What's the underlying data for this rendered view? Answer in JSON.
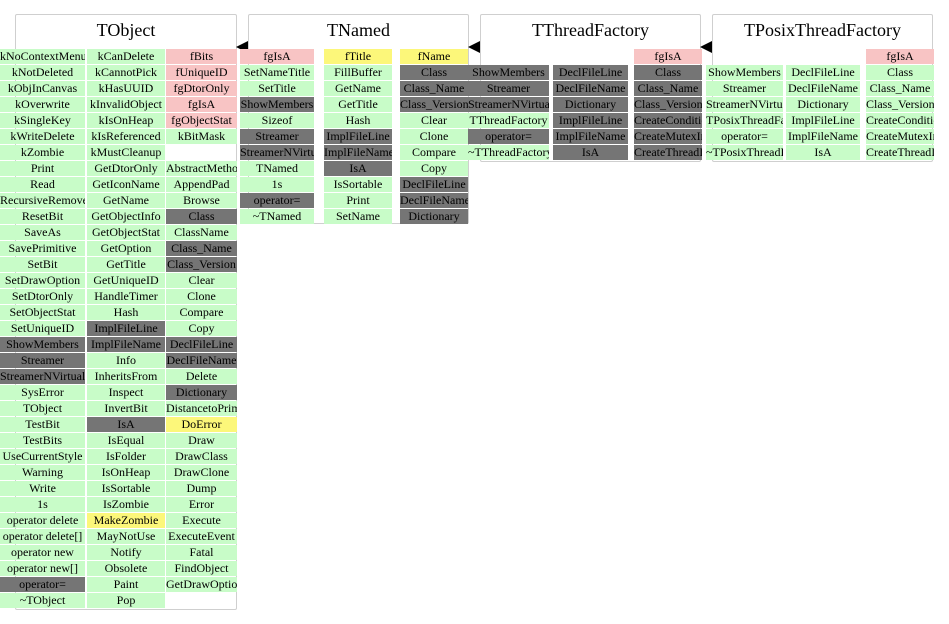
{
  "colors": {
    "public": "#c8fcc8",
    "private": "#757575",
    "protected": "#f8c4c4",
    "special": "#fcf77a"
  },
  "classes": [
    {
      "name": "TObject",
      "columns": [
        [
          {
            "t": "kNoContextMenu",
            "k": "public"
          },
          {
            "t": "kNotDeleted",
            "k": "public"
          },
          {
            "t": "kObjInCanvas",
            "k": "public"
          },
          {
            "t": "kOverwrite",
            "k": "public"
          },
          {
            "t": "kSingleKey",
            "k": "public"
          },
          {
            "t": "kWriteDelete",
            "k": "public"
          },
          {
            "t": "kZombie",
            "k": "public"
          },
          {
            "t": "Print",
            "k": "public"
          },
          {
            "t": "Read",
            "k": "public"
          },
          {
            "t": "RecursiveRemove",
            "k": "public"
          },
          {
            "t": "ResetBit",
            "k": "public"
          },
          {
            "t": "SaveAs",
            "k": "public"
          },
          {
            "t": "SavePrimitive",
            "k": "public"
          },
          {
            "t": "SetBit",
            "k": "public"
          },
          {
            "t": "SetDrawOption",
            "k": "public"
          },
          {
            "t": "SetDtorOnly",
            "k": "public"
          },
          {
            "t": "SetObjectStat",
            "k": "public"
          },
          {
            "t": "SetUniqueID",
            "k": "public"
          },
          {
            "t": "ShowMembers",
            "k": "private"
          },
          {
            "t": "Streamer",
            "k": "private"
          },
          {
            "t": "StreamerNVirtual",
            "k": "private"
          },
          {
            "t": "SysError",
            "k": "public"
          },
          {
            "t": "TObject",
            "k": "public"
          },
          {
            "t": "TestBit",
            "k": "public"
          },
          {
            "t": "TestBits",
            "k": "public"
          },
          {
            "t": "UseCurrentStyle",
            "k": "public"
          },
          {
            "t": "Warning",
            "k": "public"
          },
          {
            "t": "Write",
            "k": "public"
          },
          {
            "t": "1s",
            "k": "public"
          },
          {
            "t": "operator delete",
            "k": "public"
          },
          {
            "t": "operator delete[]",
            "k": "public"
          },
          {
            "t": "operator new",
            "k": "public"
          },
          {
            "t": "operator new[]",
            "k": "public"
          },
          {
            "t": "operator=",
            "k": "private"
          },
          {
            "t": "~TObject",
            "k": "public"
          }
        ],
        [
          {
            "t": "kCanDelete",
            "k": "public"
          },
          {
            "t": "kCannotPick",
            "k": "public"
          },
          {
            "t": "kHasUUID",
            "k": "public"
          },
          {
            "t": "kInvalidObject",
            "k": "public"
          },
          {
            "t": "kIsOnHeap",
            "k": "public"
          },
          {
            "t": "kIsReferenced",
            "k": "public"
          },
          {
            "t": "kMustCleanup",
            "k": "public"
          },
          {
            "t": "GetDtorOnly",
            "k": "public"
          },
          {
            "t": "GetIconName",
            "k": "public"
          },
          {
            "t": "GetName",
            "k": "public"
          },
          {
            "t": "GetObjectInfo",
            "k": "public"
          },
          {
            "t": "GetObjectStat",
            "k": "public"
          },
          {
            "t": "GetOption",
            "k": "public"
          },
          {
            "t": "GetTitle",
            "k": "public"
          },
          {
            "t": "GetUniqueID",
            "k": "public"
          },
          {
            "t": "HandleTimer",
            "k": "public"
          },
          {
            "t": "Hash",
            "k": "public"
          },
          {
            "t": "ImplFileLine",
            "k": "private"
          },
          {
            "t": "ImplFileName",
            "k": "private"
          },
          {
            "t": "Info",
            "k": "public"
          },
          {
            "t": "InheritsFrom",
            "k": "public"
          },
          {
            "t": "Inspect",
            "k": "public"
          },
          {
            "t": "InvertBit",
            "k": "public"
          },
          {
            "t": "IsA",
            "k": "private"
          },
          {
            "t": "IsEqual",
            "k": "public"
          },
          {
            "t": "IsFolder",
            "k": "public"
          },
          {
            "t": "IsOnHeap",
            "k": "public"
          },
          {
            "t": "IsSortable",
            "k": "public"
          },
          {
            "t": "IsZombie",
            "k": "public"
          },
          {
            "t": "MakeZombie",
            "k": "special"
          },
          {
            "t": "MayNotUse",
            "k": "public"
          },
          {
            "t": "Notify",
            "k": "public"
          },
          {
            "t": "Obsolete",
            "k": "public"
          },
          {
            "t": "Paint",
            "k": "public"
          },
          {
            "t": "Pop",
            "k": "public"
          }
        ],
        [
          {
            "t": "fBits",
            "k": "prot"
          },
          {
            "t": "fUniqueID",
            "k": "prot"
          },
          {
            "t": "fgDtorOnly",
            "k": "prot"
          },
          {
            "t": "fgIsA",
            "k": "prot"
          },
          {
            "t": "fgObjectStat",
            "k": "prot"
          },
          {
            "t": "kBitMask",
            "k": "public"
          },
          {
            "t": "",
            "k": "blank"
          },
          {
            "t": "AbstractMethod",
            "k": "public"
          },
          {
            "t": "AppendPad",
            "k": "public"
          },
          {
            "t": "Browse",
            "k": "public"
          },
          {
            "t": "Class",
            "k": "private"
          },
          {
            "t": "ClassName",
            "k": "public"
          },
          {
            "t": "Class_Name",
            "k": "private"
          },
          {
            "t": "Class_Version",
            "k": "private"
          },
          {
            "t": "Clear",
            "k": "public"
          },
          {
            "t": "Clone",
            "k": "public"
          },
          {
            "t": "Compare",
            "k": "public"
          },
          {
            "t": "Copy",
            "k": "public"
          },
          {
            "t": "DeclFileLine",
            "k": "private"
          },
          {
            "t": "DeclFileName",
            "k": "private"
          },
          {
            "t": "Delete",
            "k": "public"
          },
          {
            "t": "Dictionary",
            "k": "private"
          },
          {
            "t": "DistancetoPrimitive",
            "k": "public"
          },
          {
            "t": "DoError",
            "k": "special"
          },
          {
            "t": "Draw",
            "k": "public"
          },
          {
            "t": "DrawClass",
            "k": "public"
          },
          {
            "t": "DrawClone",
            "k": "public"
          },
          {
            "t": "Dump",
            "k": "public"
          },
          {
            "t": "Error",
            "k": "public"
          },
          {
            "t": "Execute",
            "k": "public"
          },
          {
            "t": "ExecuteEvent",
            "k": "public"
          },
          {
            "t": "Fatal",
            "k": "public"
          },
          {
            "t": "FindObject",
            "k": "public"
          },
          {
            "t": "GetDrawOption",
            "k": "public"
          }
        ]
      ]
    },
    {
      "name": "TNamed",
      "columns": [
        [
          {
            "t": "fgIsA",
            "k": "prot"
          },
          {
            "t": "SetNameTitle",
            "k": "public"
          },
          {
            "t": "SetTitle",
            "k": "public"
          },
          {
            "t": "ShowMembers",
            "k": "private"
          },
          {
            "t": "Sizeof",
            "k": "public"
          },
          {
            "t": "Streamer",
            "k": "private"
          },
          {
            "t": "StreamerNVirtual",
            "k": "private"
          },
          {
            "t": "TNamed",
            "k": "public"
          },
          {
            "t": "1s",
            "k": "public"
          },
          {
            "t": "operator=",
            "k": "private"
          },
          {
            "t": "~TNamed",
            "k": "public"
          }
        ],
        [
          {
            "t": "fTitle",
            "k": "special"
          },
          {
            "t": "FillBuffer",
            "k": "public"
          },
          {
            "t": "GetName",
            "k": "public"
          },
          {
            "t": "GetTitle",
            "k": "public"
          },
          {
            "t": "Hash",
            "k": "public"
          },
          {
            "t": "ImplFileLine",
            "k": "private"
          },
          {
            "t": "ImplFileName",
            "k": "private"
          },
          {
            "t": "IsA",
            "k": "private"
          },
          {
            "t": "IsSortable",
            "k": "public"
          },
          {
            "t": "Print",
            "k": "public"
          },
          {
            "t": "SetName",
            "k": "public"
          }
        ],
        [
          {
            "t": "fName",
            "k": "special"
          },
          {
            "t": "Class",
            "k": "private"
          },
          {
            "t": "Class_Name",
            "k": "private"
          },
          {
            "t": "Class_Version",
            "k": "private"
          },
          {
            "t": "Clear",
            "k": "public"
          },
          {
            "t": "Clone",
            "k": "public"
          },
          {
            "t": "Compare",
            "k": "public"
          },
          {
            "t": "Copy",
            "k": "public"
          },
          {
            "t": "DeclFileLine",
            "k": "private"
          },
          {
            "t": "DeclFileName",
            "k": "private"
          },
          {
            "t": "Dictionary",
            "k": "private"
          }
        ]
      ]
    },
    {
      "name": "TThreadFactory",
      "columns": [
        [
          {
            "t": "",
            "k": "blank"
          },
          {
            "t": "ShowMembers",
            "k": "private"
          },
          {
            "t": "Streamer",
            "k": "private"
          },
          {
            "t": "StreamerNVirtual",
            "k": "private"
          },
          {
            "t": "TThreadFactory",
            "k": "public"
          },
          {
            "t": "operator=",
            "k": "private"
          },
          {
            "t": "~TThreadFactory",
            "k": "public"
          }
        ],
        [
          {
            "t": "",
            "k": "blank"
          },
          {
            "t": "DeclFileLine",
            "k": "private"
          },
          {
            "t": "DeclFileName",
            "k": "private"
          },
          {
            "t": "Dictionary",
            "k": "private"
          },
          {
            "t": "ImplFileLine",
            "k": "private"
          },
          {
            "t": "ImplFileName",
            "k": "private"
          },
          {
            "t": "IsA",
            "k": "private"
          }
        ],
        [
          {
            "t": "fgIsA",
            "k": "prot"
          },
          {
            "t": "Class",
            "k": "private"
          },
          {
            "t": "Class_Name",
            "k": "private"
          },
          {
            "t": "Class_Version",
            "k": "private"
          },
          {
            "t": "CreateCondition",
            "k": "private"
          },
          {
            "t": "CreateMutexImp",
            "k": "private"
          },
          {
            "t": "CreateThreadImp",
            "k": "private"
          }
        ]
      ]
    },
    {
      "name": "TPosixThreadFactory",
      "columns": [
        [
          {
            "t": "",
            "k": "blank"
          },
          {
            "t": "ShowMembers",
            "k": "public"
          },
          {
            "t": "Streamer",
            "k": "public"
          },
          {
            "t": "StreamerNVirtual",
            "k": "public"
          },
          {
            "t": "TPosixThreadFactory",
            "k": "public"
          },
          {
            "t": "operator=",
            "k": "public"
          },
          {
            "t": "~TPosixThreadFactory",
            "k": "public"
          }
        ],
        [
          {
            "t": "",
            "k": "blank"
          },
          {
            "t": "DeclFileLine",
            "k": "public"
          },
          {
            "t": "DeclFileName",
            "k": "public"
          },
          {
            "t": "Dictionary",
            "k": "public"
          },
          {
            "t": "ImplFileLine",
            "k": "public"
          },
          {
            "t": "ImplFileName",
            "k": "public"
          },
          {
            "t": "IsA",
            "k": "public"
          }
        ],
        [
          {
            "t": "fgIsA",
            "k": "prot"
          },
          {
            "t": "Class",
            "k": "public"
          },
          {
            "t": "Class_Name",
            "k": "public"
          },
          {
            "t": "Class_Version",
            "k": "public"
          },
          {
            "t": "CreateCondition",
            "k": "public"
          },
          {
            "t": "CreateMutexImp",
            "k": "public"
          },
          {
            "t": "CreateThreadImp",
            "k": "public"
          }
        ]
      ]
    }
  ]
}
